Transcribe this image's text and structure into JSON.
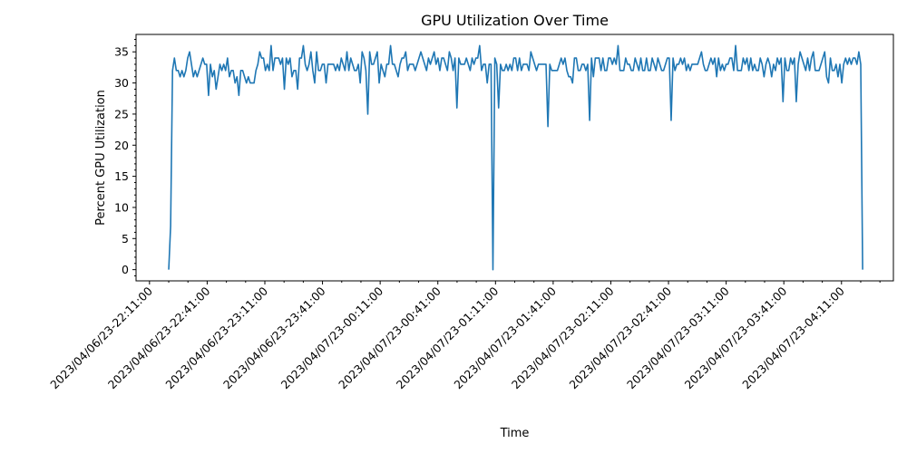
{
  "chart_data": {
    "type": "line",
    "title": "GPU Utilization Over Time",
    "xlabel": "Time",
    "ylabel": "Percent GPU Utilization",
    "line_color": "#1f77b4",
    "grid": false,
    "legend": "none",
    "x_start": "2023/04/06/23-22:21:00",
    "x_end": "2023/04/07/23-04:22:00",
    "xlim": [
      "2023/04/06/23-22:04:00",
      "2023/04/07/23-04:38:00"
    ],
    "ylim": [
      -1.8,
      37.8
    ],
    "y_ticks": [
      0,
      5,
      10,
      15,
      20,
      25,
      30,
      35
    ],
    "x_ticks": [
      "2023/04/06/23-22:11:00",
      "2023/04/06/23-22:41:00",
      "2023/04/06/23-23:11:00",
      "2023/04/06/23-23:41:00",
      "2023/04/07/23-00:11:00",
      "2023/04/07/23-00:41:00",
      "2023/04/07/23-01:11:00",
      "2023/04/07/23-01:41:00",
      "2023/04/07/23-02:11:00",
      "2023/04/07/23-02:41:00",
      "2023/04/07/23-03:11:00",
      "2023/04/07/23-03:41:00",
      "2023/04/07/23-04:11:00"
    ],
    "values": [
      0,
      7,
      32,
      34,
      32,
      32,
      31,
      32,
      31,
      32,
      34,
      35,
      33,
      31,
      32,
      31,
      32,
      33,
      34,
      33,
      33,
      28,
      33,
      31,
      32,
      29,
      31,
      33,
      32,
      33,
      32,
      34,
      31,
      32,
      32,
      30,
      31,
      28,
      32,
      32,
      31,
      30,
      31,
      30,
      30,
      30,
      32,
      33,
      35,
      34,
      34,
      32,
      33,
      32,
      36,
      32,
      34,
      34,
      34,
      33,
      34,
      29,
      34,
      33,
      34,
      31,
      32,
      32,
      29,
      34,
      34,
      36,
      33,
      32,
      33,
      35,
      32,
      30,
      35,
      32,
      32,
      33,
      33,
      30,
      33,
      33,
      33,
      33,
      32,
      33,
      32,
      34,
      33,
      32,
      35,
      32,
      34,
      33,
      32,
      32,
      33,
      30,
      35,
      34,
      32,
      25,
      35,
      33,
      33,
      34,
      35,
      30,
      33,
      32,
      31,
      33,
      33,
      36,
      33,
      33,
      32,
      31,
      33,
      34,
      34,
      35,
      32,
      33,
      33,
      33,
      32,
      33,
      34,
      35,
      34,
      33,
      32,
      34,
      33,
      34,
      35,
      33,
      34,
      32,
      34,
      34,
      33,
      32,
      35,
      34,
      32,
      34,
      26,
      34,
      33,
      33,
      33,
      34,
      33,
      32,
      34,
      33,
      34,
      34,
      36,
      32,
      33,
      33,
      30,
      33,
      33,
      0,
      34,
      33,
      26,
      33,
      32,
      32,
      33,
      32,
      33,
      32,
      34,
      34,
      32,
      34,
      32,
      33,
      33,
      33,
      32,
      35,
      34,
      33,
      32,
      33,
      33,
      33,
      33,
      33,
      23,
      33,
      32,
      32,
      32,
      32,
      33,
      34,
      33,
      34,
      32,
      31,
      31,
      30,
      34,
      34,
      32,
      32,
      33,
      33,
      32,
      33,
      24,
      34,
      31,
      34,
      34,
      34,
      32,
      34,
      32,
      32,
      34,
      34,
      33,
      34,
      33,
      36,
      32,
      32,
      32,
      34,
      33,
      33,
      32,
      32,
      34,
      33,
      32,
      34,
      32,
      32,
      34,
      32,
      32,
      34,
      33,
      32,
      34,
      33,
      32,
      32,
      33,
      34,
      34,
      24,
      34,
      32,
      33,
      33,
      34,
      33,
      34,
      32,
      33,
      32,
      33,
      33,
      33,
      33,
      34,
      35,
      33,
      32,
      32,
      33,
      34,
      33,
      34,
      31,
      34,
      32,
      33,
      32,
      33,
      33,
      34,
      34,
      32,
      36,
      32,
      32,
      32,
      34,
      33,
      34,
      32,
      34,
      32,
      33,
      32,
      32,
      34,
      33,
      31,
      33,
      34,
      33,
      31,
      33,
      32,
      34,
      33,
      34,
      27,
      34,
      32,
      32,
      34,
      33,
      34,
      27,
      33,
      35,
      34,
      33,
      32,
      34,
      32,
      34,
      35,
      32,
      32,
      32,
      33,
      34,
      35,
      31,
      30,
      34,
      32,
      32,
      33,
      31,
      33,
      30,
      33,
      34,
      33,
      34,
      33,
      34,
      34,
      33,
      35,
      33,
      0
    ]
  }
}
